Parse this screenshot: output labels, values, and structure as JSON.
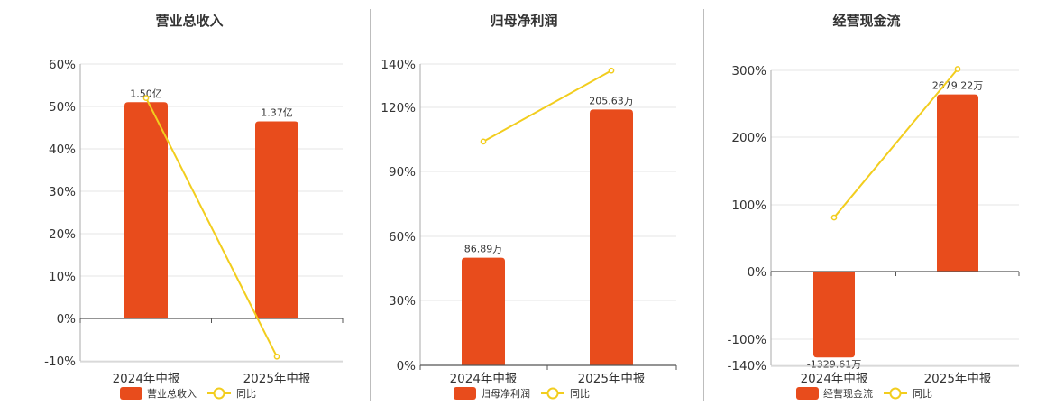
{
  "chart_data": [
    {
      "type": "bar",
      "title": "营业总收入",
      "categories": [
        "2024年中报",
        "2025年中报"
      ],
      "y_ticks": [
        "60%",
        "50%",
        "40%",
        "30%",
        "20%",
        "10%",
        "0%",
        "-10%"
      ],
      "ylim": [
        -10,
        60
      ],
      "series": [
        {
          "name": "营业总收入",
          "type": "bar",
          "values": [
            51,
            46.5
          ],
          "labels": [
            "1.50亿",
            "1.37亿"
          ]
        },
        {
          "name": "同比",
          "type": "line",
          "values": [
            52,
            -9
          ]
        }
      ]
    },
    {
      "type": "bar",
      "title": "归母净利润",
      "categories": [
        "2024年中报",
        "2025年中报"
      ],
      "y_ticks": [
        "140%",
        "120%",
        "90%",
        "60%",
        "30%",
        "0%"
      ],
      "ylim": [
        0,
        140
      ],
      "series": [
        {
          "name": "归母净利润",
          "type": "bar",
          "values": [
            50,
            119
          ],
          "labels": [
            "86.89万",
            "205.63万"
          ]
        },
        {
          "name": "同比",
          "type": "line",
          "values": [
            104,
            137
          ]
        }
      ]
    },
    {
      "type": "bar",
      "title": "经营现金流",
      "categories": [
        "2024年中报",
        "2025年中报"
      ],
      "y_ticks": [
        "300%",
        "200%",
        "100%",
        "0%",
        "-100%",
        "-140%"
      ],
      "ylim": [
        -140,
        300
      ],
      "series": [
        {
          "name": "经营现金流",
          "type": "bar",
          "values": [
            -128,
            264
          ],
          "labels": [
            "-1329.61万",
            "2679.22万"
          ]
        },
        {
          "name": "同比",
          "type": "line",
          "values": [
            81,
            302
          ]
        }
      ]
    }
  ],
  "colors": {
    "bar": "#e84c1c",
    "line": "#f2cd1e",
    "grid": "#e6e6e6",
    "axis": "#555555",
    "text": "#333333"
  }
}
